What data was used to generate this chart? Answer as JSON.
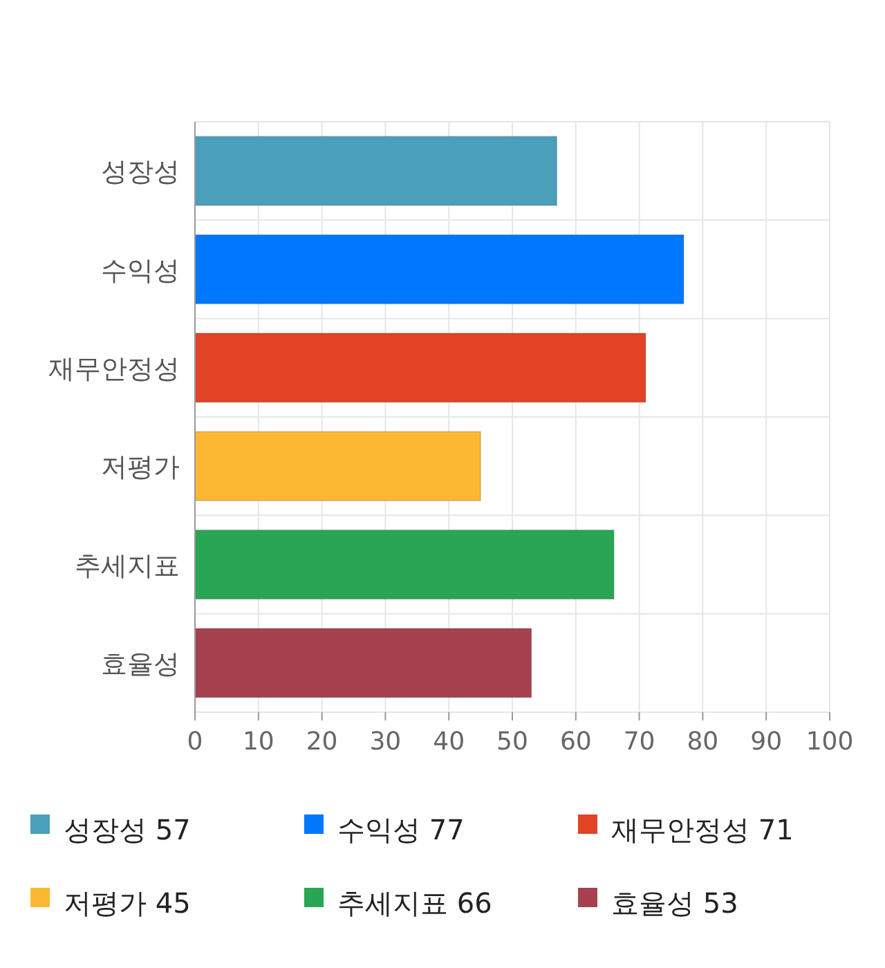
{
  "chart_data": {
    "type": "bar",
    "orientation": "horizontal",
    "categories": [
      "성장성",
      "수익성",
      "재무안정성",
      "저평가",
      "추세지표",
      "효율성"
    ],
    "series": [
      {
        "name": "성장성 57",
        "color": "#4aa0bb",
        "values": [
          57,
          null,
          null,
          null,
          null,
          null
        ]
      },
      {
        "name": "수익성 77",
        "color": "#0077ff",
        "values": [
          null,
          77,
          null,
          null,
          null,
          null
        ]
      },
      {
        "name": "재무안정성 71",
        "color": "#e24324",
        "values": [
          null,
          null,
          71,
          null,
          null,
          null
        ]
      },
      {
        "name": "저평가 45",
        "color": "#fdb833",
        "values": [
          null,
          null,
          null,
          45,
          null,
          null
        ]
      },
      {
        "name": "추세지표 66",
        "color": "#29a654",
        "values": [
          null,
          null,
          null,
          null,
          66,
          null
        ]
      },
      {
        "name": "효율성 53",
        "color": "#a6424f",
        "values": [
          null,
          null,
          null,
          null,
          null,
          53
        ]
      }
    ],
    "xlim": [
      0,
      100
    ],
    "xticks": [
      0,
      10,
      20,
      30,
      40,
      50,
      60,
      70,
      80,
      90,
      100
    ],
    "grid": true,
    "legend": "bottom"
  }
}
